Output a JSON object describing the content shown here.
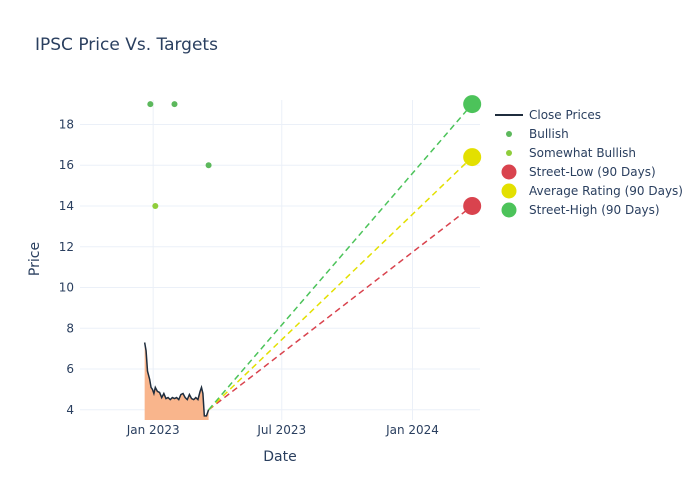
{
  "chart_data": {
    "type": "line",
    "title": "IPSC Price Vs. Targets",
    "xlabel": "Date",
    "ylabel": "Price",
    "x_ticks": [
      {
        "date": "2023-01-01",
        "label": "Jan 2023"
      },
      {
        "date": "2023-07-01",
        "label": "Jul 2023"
      },
      {
        "date": "2024-01-01",
        "label": "Jan 2024"
      }
    ],
    "y_ticks": [
      4,
      6,
      8,
      10,
      12,
      14,
      16,
      18
    ],
    "xlim": [
      "2022-09-20",
      "2024-04-05"
    ],
    "ylim": [
      3.5,
      19.2
    ],
    "grid": true,
    "legend_position": "right",
    "series": [
      {
        "name": "Close Prices",
        "kind": "line",
        "color": "#1f2d3d",
        "fill_color": "#f9b58c",
        "points": [
          {
            "x": "2022-12-20",
            "y": 7.3
          },
          {
            "x": "2022-12-22",
            "y": 6.9
          },
          {
            "x": "2022-12-24",
            "y": 5.9
          },
          {
            "x": "2022-12-27",
            "y": 5.5
          },
          {
            "x": "2022-12-29",
            "y": 5.1
          },
          {
            "x": "2022-12-31",
            "y": 5.0
          },
          {
            "x": "2023-01-02",
            "y": 4.8
          },
          {
            "x": "2023-01-04",
            "y": 5.1
          },
          {
            "x": "2023-01-07",
            "y": 4.9
          },
          {
            "x": "2023-01-10",
            "y": 4.85
          },
          {
            "x": "2023-01-13",
            "y": 4.6
          },
          {
            "x": "2023-01-16",
            "y": 4.8
          },
          {
            "x": "2023-01-19",
            "y": 4.55
          },
          {
            "x": "2023-01-22",
            "y": 4.6
          },
          {
            "x": "2023-01-25",
            "y": 4.5
          },
          {
            "x": "2023-01-28",
            "y": 4.6
          },
          {
            "x": "2023-01-31",
            "y": 4.55
          },
          {
            "x": "2023-02-03",
            "y": 4.6
          },
          {
            "x": "2023-02-06",
            "y": 4.5
          },
          {
            "x": "2023-02-09",
            "y": 4.75
          },
          {
            "x": "2023-02-12",
            "y": 4.8
          },
          {
            "x": "2023-02-15",
            "y": 4.6
          },
          {
            "x": "2023-02-18",
            "y": 4.5
          },
          {
            "x": "2023-02-21",
            "y": 4.75
          },
          {
            "x": "2023-02-24",
            "y": 4.55
          },
          {
            "x": "2023-02-27",
            "y": 4.5
          },
          {
            "x": "2023-03-02",
            "y": 4.6
          },
          {
            "x": "2023-03-05",
            "y": 4.5
          },
          {
            "x": "2023-03-08",
            "y": 4.9
          },
          {
            "x": "2023-03-10",
            "y": 5.1
          },
          {
            "x": "2023-03-12",
            "y": 4.8
          },
          {
            "x": "2023-03-14",
            "y": 3.7
          },
          {
            "x": "2023-03-17",
            "y": 3.7
          },
          {
            "x": "2023-03-20",
            "y": 4.0
          }
        ]
      },
      {
        "name": "Bullish",
        "kind": "markers",
        "color": "#5cb85c",
        "points": [
          {
            "x": "2022-12-28",
            "y": 19.0
          },
          {
            "x": "2023-01-31",
            "y": 19.0
          },
          {
            "x": "2023-03-20",
            "y": 16.0
          }
        ]
      },
      {
        "name": "Somewhat Bullish",
        "kind": "markers",
        "color": "#8fcd3b",
        "points": [
          {
            "x": "2023-01-04",
            "y": 14.0
          }
        ]
      },
      {
        "name": "Street-Low (90 Days)",
        "kind": "target",
        "color": "#d9434e",
        "points": [
          {
            "x": "2023-03-20",
            "y": 4.0
          },
          {
            "x": "2024-03-25",
            "y": 14.0
          }
        ]
      },
      {
        "name": "Average Rating (90 Days)",
        "kind": "target",
        "color": "#e3e000",
        "points": [
          {
            "x": "2023-03-20",
            "y": 4.0
          },
          {
            "x": "2024-03-25",
            "y": 16.4
          }
        ]
      },
      {
        "name": "Street-High (90 Days)",
        "kind": "target",
        "color": "#4cc35a",
        "points": [
          {
            "x": "2023-03-20",
            "y": 4.0
          },
          {
            "x": "2024-03-25",
            "y": 19.0
          }
        ]
      }
    ]
  }
}
